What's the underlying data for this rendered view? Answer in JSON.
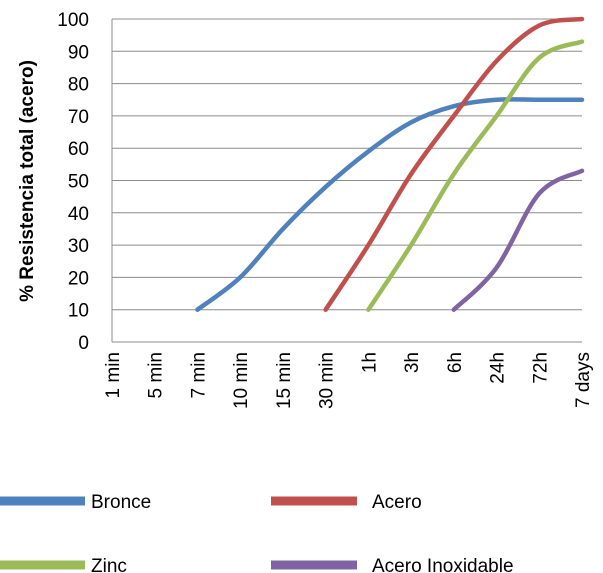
{
  "chart_data": {
    "type": "line",
    "title": "",
    "xlabel": "",
    "ylabel": "% Resistencia total (acero)",
    "ylim": [
      0,
      100
    ],
    "yticks": [
      0,
      10,
      20,
      30,
      40,
      50,
      60,
      70,
      80,
      90,
      100
    ],
    "categories": [
      "1 min",
      "5 min",
      "7 min",
      "10 min",
      "15 min",
      "30 min",
      "1h",
      "3h",
      "6h",
      "24h",
      "72h",
      "7 days"
    ],
    "grid": "horizontal",
    "legend_position": "bottom",
    "series": [
      {
        "name": "Bronce",
        "color": "#4f81bd",
        "values": [
          null,
          null,
          10,
          20,
          35,
          48,
          59,
          68,
          73,
          75,
          75,
          75
        ]
      },
      {
        "name": "Acero",
        "color": "#c0504d",
        "values": [
          null,
          null,
          null,
          null,
          null,
          10,
          30,
          52,
          70,
          87,
          98,
          100
        ]
      },
      {
        "name": "Zinc",
        "color": "#9bbb59",
        "values": [
          null,
          null,
          null,
          null,
          null,
          null,
          10,
          30,
          52,
          70,
          88,
          93
        ]
      },
      {
        "name": "Acero Inoxidable",
        "color": "#8064a2",
        "values": [
          null,
          null,
          null,
          null,
          null,
          null,
          null,
          null,
          10,
          23,
          46,
          53
        ]
      }
    ]
  }
}
